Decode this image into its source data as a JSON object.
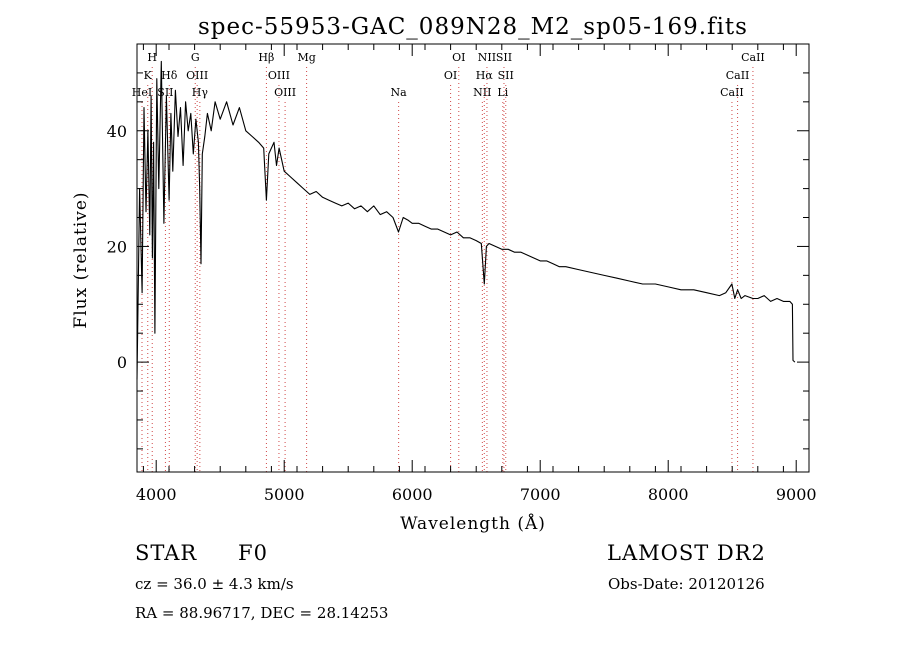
{
  "chart_data": {
    "type": "line",
    "title": "spec-55953-GAC_089N28_M2_sp05-169.fits",
    "xlabel": "Wavelength (Å)",
    "ylabel": "Flux (relative)",
    "xlim": [
      3850,
      9100
    ],
    "ylim": [
      -19,
      55
    ],
    "xticks": [
      4000,
      5000,
      6000,
      7000,
      8000,
      9000
    ],
    "yticks": [
      0,
      20,
      40
    ],
    "grid": false,
    "series": [
      {
        "x": [
          3850,
          3870,
          3890,
          3905,
          3920,
          3935,
          3950,
          3960,
          3970,
          3980,
          3990,
          4005,
          4020,
          4040,
          4060,
          4080,
          4101,
          4115,
          4130,
          4150,
          4170,
          4190,
          4210,
          4230,
          4250,
          4270,
          4290,
          4310,
          4330,
          4340,
          4350,
          4360,
          4380,
          4400,
          4430,
          4460,
          4500,
          4550,
          4600,
          4650,
          4700,
          4750,
          4800,
          4840,
          4861,
          4880,
          4920,
          4940,
          4960,
          5000,
          5050,
          5100,
          5150,
          5200,
          5250,
          5300,
          5350,
          5400,
          5450,
          5500,
          5550,
          5600,
          5650,
          5700,
          5750,
          5800,
          5850,
          5893,
          5930,
          5970,
          6000,
          6050,
          6100,
          6150,
          6200,
          6250,
          6300,
          6350,
          6400,
          6450,
          6500,
          6540,
          6563,
          6580,
          6600,
          6650,
          6700,
          6750,
          6800,
          6850,
          6900,
          6950,
          7000,
          7050,
          7100,
          7150,
          7200,
          7300,
          7400,
          7500,
          7600,
          7700,
          7800,
          7900,
          8000,
          8100,
          8200,
          8300,
          8400,
          8450,
          8498,
          8520,
          8542,
          8570,
          8600,
          8662,
          8700,
          8750,
          8800,
          8850,
          8900,
          8950,
          8970,
          8975,
          8990
        ],
        "y": [
          -3,
          30,
          12,
          44,
          26,
          40,
          22,
          46,
          18,
          38,
          5,
          49,
          30,
          52,
          24,
          46,
          28,
          43,
          33,
          47,
          39,
          44,
          34,
          45,
          40,
          43,
          36,
          42,
          38,
          30,
          17,
          36,
          39,
          43,
          40,
          45,
          42,
          45,
          41,
          44,
          40,
          39,
          38,
          37,
          28,
          36,
          38,
          34,
          37,
          33,
          32,
          31,
          30,
          29,
          29.5,
          28.5,
          28,
          27.5,
          27,
          27.5,
          26.5,
          27,
          26,
          27,
          25.5,
          26,
          25,
          22.5,
          25,
          24.5,
          24,
          24,
          23.5,
          23,
          23,
          22.5,
          22,
          22.5,
          21.5,
          21.5,
          21,
          20.5,
          13.5,
          20,
          20.5,
          20,
          19.5,
          19.5,
          19,
          19,
          18.5,
          18,
          17.5,
          17.5,
          17,
          16.5,
          16.5,
          16,
          15.5,
          15,
          14.5,
          14,
          13.5,
          13.5,
          13,
          12.5,
          12.5,
          12,
          11.5,
          12,
          13.5,
          11,
          12.5,
          11,
          11.5,
          11,
          11,
          11.5,
          10.5,
          11,
          10.5,
          10.5,
          10,
          0.3,
          0
        ]
      }
    ],
    "lines": [
      {
        "label": "HeI",
        "x": 3889,
        "row": 3
      },
      {
        "label": "K",
        "x": 3934,
        "row": 2
      },
      {
        "label": "H",
        "x": 3969,
        "row": 1
      },
      {
        "label": "SII",
        "x": 4072,
        "row": 3
      },
      {
        "label": "Hδ",
        "x": 4102,
        "row": 2
      },
      {
        "label": "G",
        "x": 4305,
        "row": 1
      },
      {
        "label": "OIII",
        "x": 4320,
        "row": 2
      },
      {
        "label": "Hγ",
        "x": 4341,
        "row": 3
      },
      {
        "label": "Hβ",
        "x": 4861,
        "row": 1
      },
      {
        "label": "OIII",
        "x": 4959,
        "row": 2
      },
      {
        "label": "OIII",
        "x": 5007,
        "row": 3
      },
      {
        "label": "Mg",
        "x": 5175,
        "row": 1
      },
      {
        "label": "Na",
        "x": 5894,
        "row": 3
      },
      {
        "label": "OI",
        "x": 6300,
        "row": 2
      },
      {
        "label": "OI",
        "x": 6364,
        "row": 1
      },
      {
        "label": "NII",
        "x": 6548,
        "row": 3
      },
      {
        "label": "NII",
        "x": 6584,
        "row": 1
      },
      {
        "label": "Hα",
        "x": 6563,
        "row": 2
      },
      {
        "label": "SII",
        "x": 6717,
        "row": 1
      },
      {
        "label": "SII",
        "x": 6731,
        "row": 2
      },
      {
        "label": "Li",
        "x": 6708,
        "row": 3
      },
      {
        "label": "CaII",
        "x": 8498,
        "row": 3
      },
      {
        "label": "CaII",
        "x": 8542,
        "row": 2
      },
      {
        "label": "CaII",
        "x": 8662,
        "row": 1
      }
    ]
  },
  "info": {
    "class_label": "STAR",
    "subclass": "F0",
    "survey": "LAMOST DR2",
    "cz": "cz = 36.0 ± 4.3 km/s",
    "obs_date": "Obs-Date: 20120126",
    "coords": "RA =  88.96717, DEC =  28.14253"
  }
}
